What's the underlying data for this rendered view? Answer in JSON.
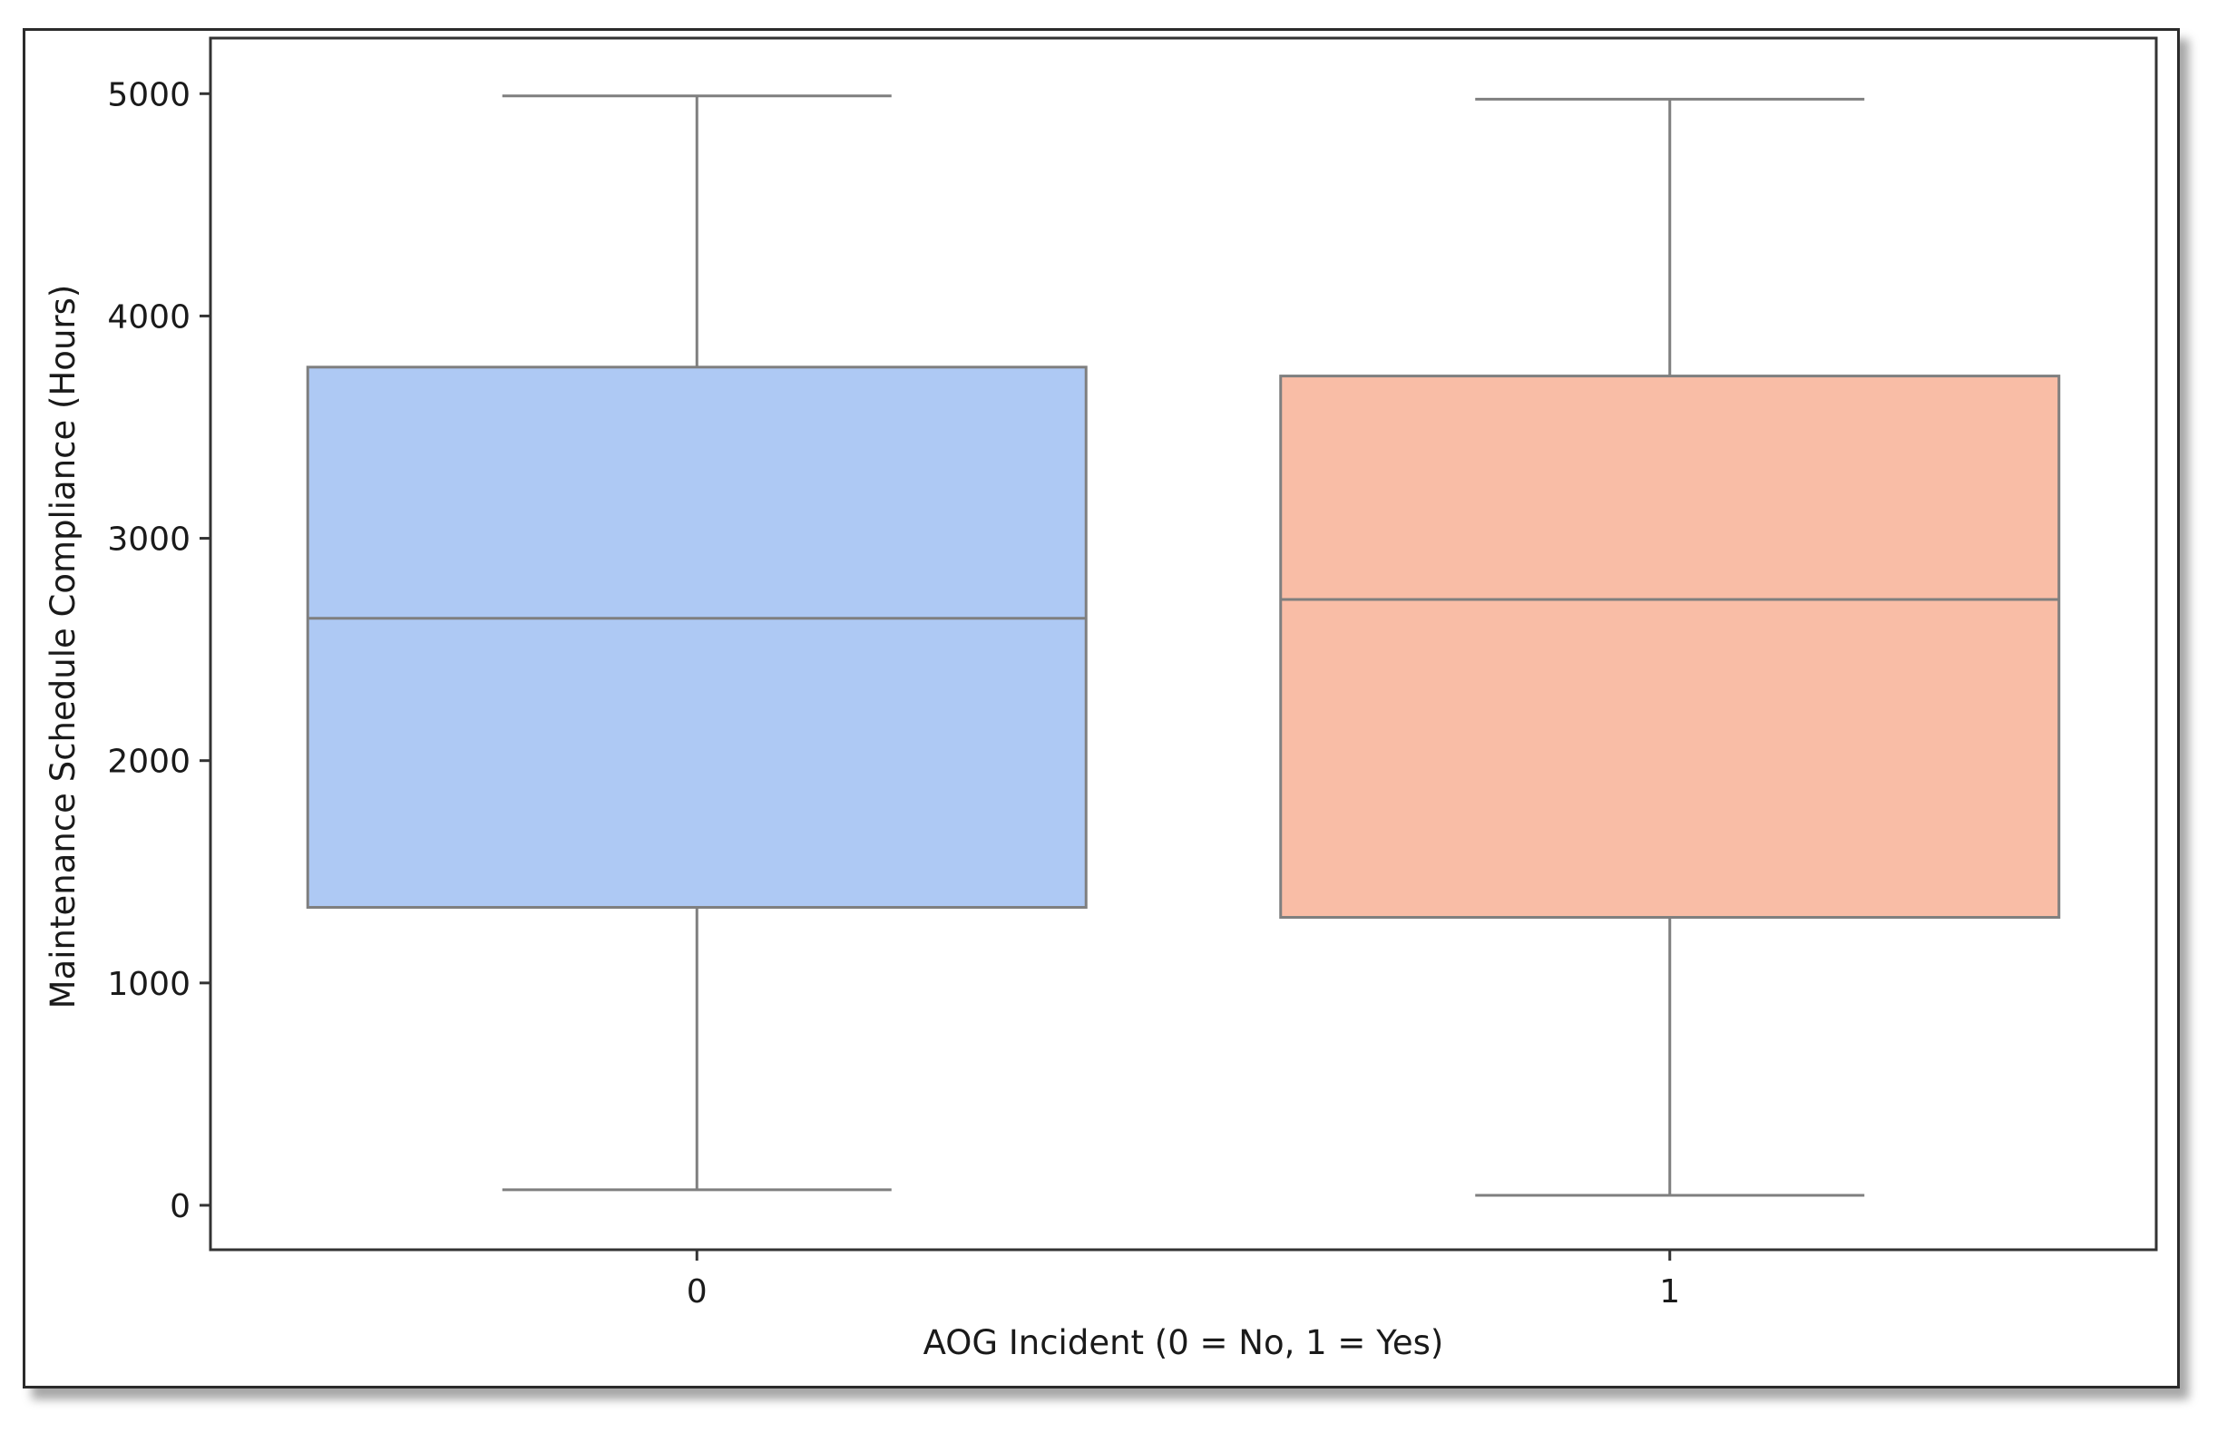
{
  "chart_data": {
    "type": "box",
    "title": "",
    "xlabel": "AOG Incident (0 = No, 1 = Yes)",
    "ylabel": "Maintenance Schedule Compliance (Hours)",
    "ylim": [
      -200,
      5250
    ],
    "yticks": [
      0,
      1000,
      2000,
      3000,
      4000,
      5000
    ],
    "categories": [
      "0",
      "1"
    ],
    "grid": false,
    "legend": "none",
    "boxes": [
      {
        "category": "0",
        "whisker_low": 70,
        "q1": 1340,
        "median": 2640,
        "q3": 3770,
        "whisker_high": 4990,
        "color": "#aec9f4"
      },
      {
        "category": "1",
        "whisker_low": 45,
        "q1": 1295,
        "median": 2725,
        "q3": 3730,
        "whisker_high": 4975,
        "color": "#f9bda6"
      }
    ],
    "line_color": "#7f7f7f"
  }
}
